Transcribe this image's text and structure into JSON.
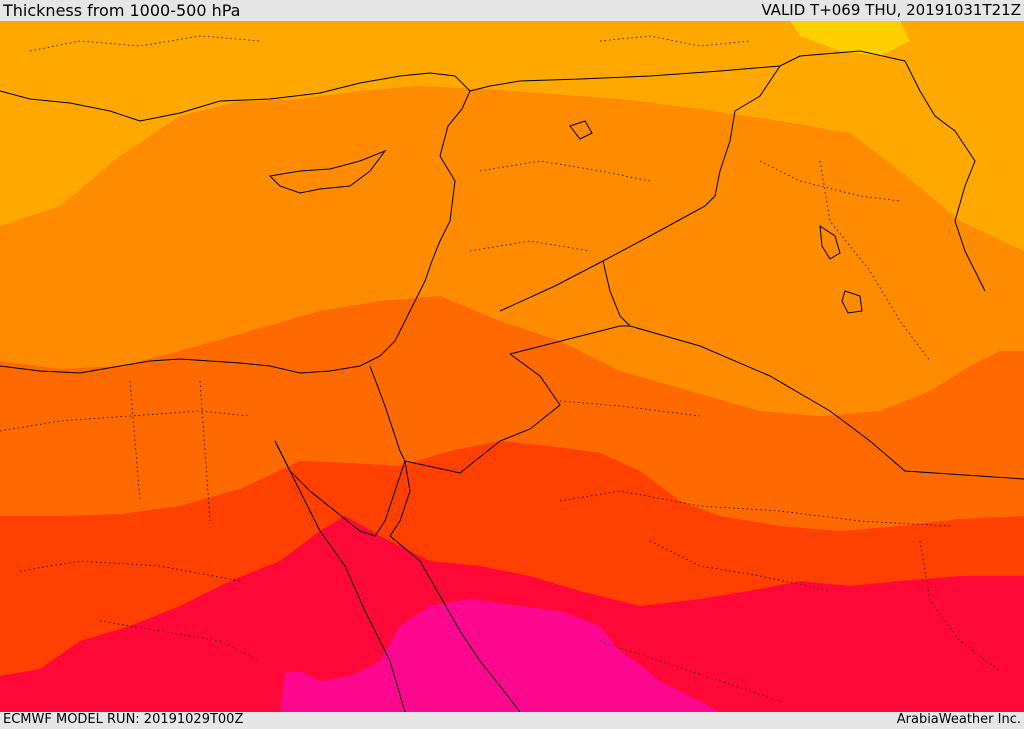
{
  "header": {
    "title": "Thickness from 1000-500 hPa",
    "valid": "VALID T+069 THU, 20191031T21Z"
  },
  "footer": {
    "model_run": "ECMWF MODEL RUN: 20191029T00Z",
    "credit": "ArabiaWeather Inc."
  },
  "colors": {
    "band_yellow": "#ffd000",
    "band_light_orange": "#ffa800",
    "band_orange": "#ff8c00",
    "band_dark_orange": "#ff6a00",
    "band_red_orange": "#ff4000",
    "band_crimson": "#ff0838",
    "band_magenta": "#ff0890",
    "borders": "#000000"
  }
}
